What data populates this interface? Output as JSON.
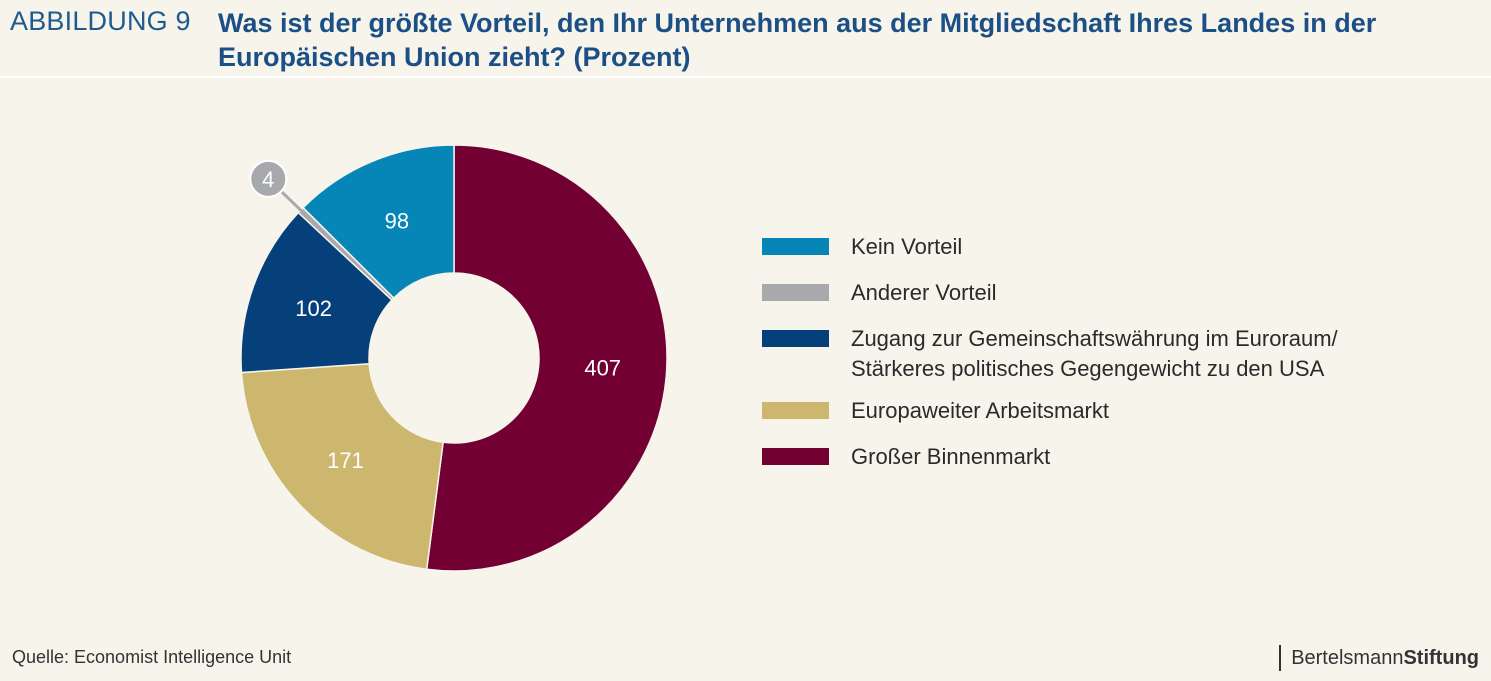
{
  "figure_label": "ABBILDUNG 9",
  "title": "Was ist der größte Vorteil, den Ihr Unternehmen aus der Mitgliedschaft Ihres Landes in der Europäischen Union zieht? (Prozent)",
  "source": "Quelle: Economist Intelligence Unit",
  "brand": {
    "regular": "Bertelsmann",
    "bold": "Stiftung"
  },
  "chart_data": {
    "type": "pie",
    "donut": true,
    "categories": [
      "Großer Binnenmarkt",
      "Europaweiter Arbeitsmarkt",
      "Zugang zur Gemeinschaftswährung im Euroraum/ Stärkeres politisches Gegengewicht zu den USA",
      "Anderer Vorteil",
      "Kein Vorteil"
    ],
    "values": [
      407,
      171,
      102,
      4,
      98
    ],
    "data_labels": [
      "407",
      "171",
      "102",
      "4",
      "98"
    ],
    "colors": [
      "#720032",
      "#cdb76e",
      "#05407b",
      "#a7a9ac",
      "#0586b6"
    ],
    "legend_position": "right",
    "legend": [
      {
        "label": "Kein Vorteil",
        "color": "#0586b6"
      },
      {
        "label": "Anderer Vorteil",
        "color": "#a7a9ac"
      },
      {
        "label": "Zugang zur Gemeinschaftswährung im Euroraum/ Stärkeres politisches Gegengewicht zu den USA",
        "color": "#05407b"
      },
      {
        "label": "Europaweiter Arbeitsmarkt",
        "color": "#cdb76e"
      },
      {
        "label": "Großer Binnenmarkt",
        "color": "#720032"
      }
    ]
  }
}
